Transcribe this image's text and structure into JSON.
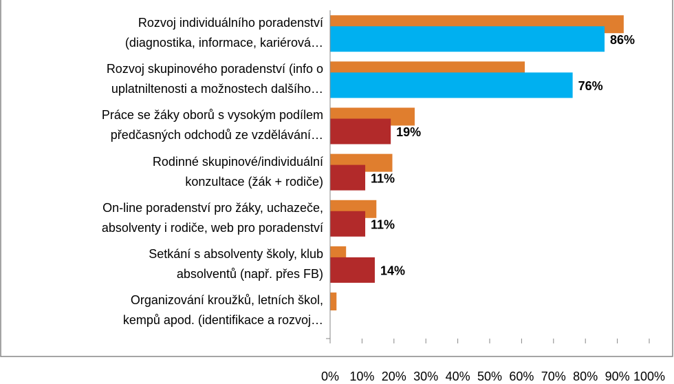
{
  "chart_data": {
    "type": "barh",
    "categories": [
      "Rozvoj individuálního poradenství\n(diagnostika, informace, kariérová…",
      "Rozvoj skupinového poradenství (info o\nuplatniltenosti a možnostech dalšího…",
      "Práce se žáky oborů s vysokým podílem\npředčasných odchodů ze vzdělávání…",
      "Rodinné skupinové/individuální\nkonzultace (žák + rodiče)",
      "On-line poradenství pro žáky, uchazeče,\nabsolventy i rodiče, web pro poradenství",
      "Setkání s absolventy školy, klub\nabsolventů (např. přes FB)",
      "Organizování kroužků, letních škol,\nkempů apod. (identifikace a rozvoj…"
    ],
    "series": [
      {
        "color": "#e07e2e",
        "values": [
          92,
          61,
          26.5,
          19.5,
          14.5,
          5,
          2
        ]
      },
      {
        "colors": [
          "#00b0f0",
          "#00b0f0",
          "#b22a2a",
          "#b22a2a",
          "#b22a2a",
          "#b22a2a",
          "#b22a2a"
        ],
        "values": [
          86,
          76,
          19,
          11,
          11,
          14,
          null
        ],
        "value_labels": [
          "86%",
          "76%",
          "19%",
          "11%",
          "11%",
          "14%",
          null
        ]
      }
    ],
    "xlim": [
      0,
      100
    ],
    "xticks": [
      {
        "value": 0,
        "label": "0%"
      },
      {
        "value": 10,
        "label": "10%"
      },
      {
        "value": 20,
        "label": "20%"
      },
      {
        "value": 30,
        "label": "30%"
      },
      {
        "value": 40,
        "label": "40%"
      },
      {
        "value": 50,
        "label": "50%"
      },
      {
        "value": 60,
        "label": "60%"
      },
      {
        "value": 70,
        "label": "70%"
      },
      {
        "value": 80,
        "label": "80%"
      },
      {
        "value": 90,
        "label": "90%"
      },
      {
        "value": 100,
        "label": "100%"
      }
    ]
  }
}
